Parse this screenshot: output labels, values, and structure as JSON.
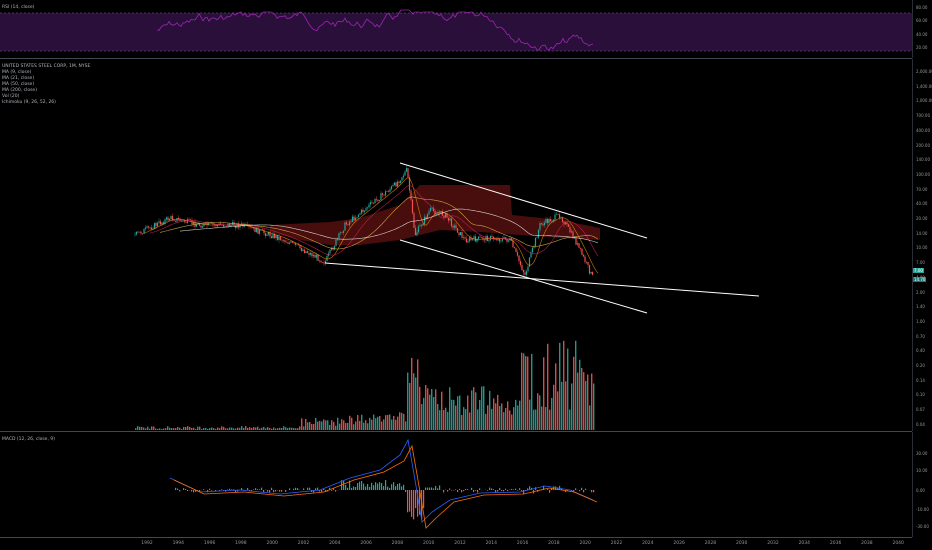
{
  "rsi_pane": {
    "legend": "RSI (14, close)",
    "ticks": [
      "80.00",
      "60.00",
      "40.00",
      "20.00"
    ]
  },
  "main_pane": {
    "legend": [
      "UNITED STATES STEEL CORP, 1M, NYSE",
      "MA (9, close)",
      "MA (21, close)",
      "MA (50, close)",
      "MA (200, close)",
      "Vol (20)",
      "Ichimoku (9, 26, 52, 26)"
    ],
    "ticks": [
      "2,000.00",
      "1,400.00",
      "1,000.00",
      "700.00",
      "400.00",
      "200.00",
      "140.00",
      "100.00",
      "70.00",
      "40.00",
      "20.00",
      "14.00",
      "10.00",
      "7.00",
      "4.00",
      "2.00",
      "1.40",
      "1.00",
      "0.70",
      "0.40",
      "0.20",
      "0.14",
      "0.10",
      "0.07",
      "0.04"
    ],
    "price_badge": "7.00",
    "ma_badge": "14.70"
  },
  "macd_pane": {
    "legend": "MACD (12, 26, close, 9)",
    "ticks": [
      "30.00",
      "10.00",
      "0.00",
      "-10.00",
      "-30.00"
    ]
  },
  "time_axis": [
    "1992",
    "1994",
    "1996",
    "1998",
    "2000",
    "2002",
    "2004",
    "2006",
    "2008",
    "2010",
    "2012",
    "2014",
    "2016",
    "2018",
    "2020",
    "2022",
    "2024",
    "2026",
    "2028",
    "2030",
    "2032",
    "2034",
    "2036",
    "2038",
    "2040"
  ],
  "colors": {
    "up": "#26a69a",
    "down": "#ef5350",
    "rsi_line": "#9c27b0",
    "rsi_band": "#2a0f3a",
    "trendline": "#ffffff",
    "macd_line": "#2962ff",
    "signal_line": "#ff6d00",
    "cloud": "#5a1010"
  }
}
